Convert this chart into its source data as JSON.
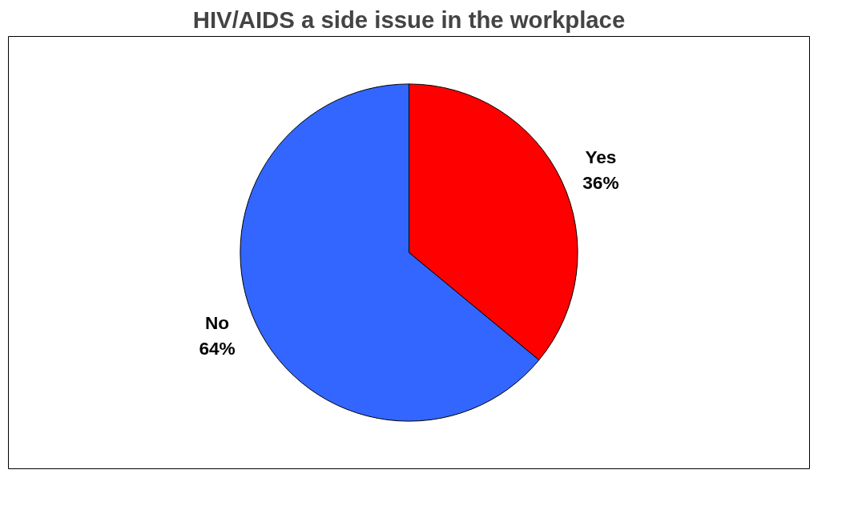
{
  "chart_data": {
    "type": "pie",
    "title": "HIV/AIDS a side issue in the workplace",
    "categories": [
      "Yes",
      "No"
    ],
    "values": [
      36,
      64
    ],
    "colors": [
      "#ff0000",
      "#3366ff"
    ],
    "value_labels": [
      "36%",
      "64%"
    ],
    "legend": false
  }
}
